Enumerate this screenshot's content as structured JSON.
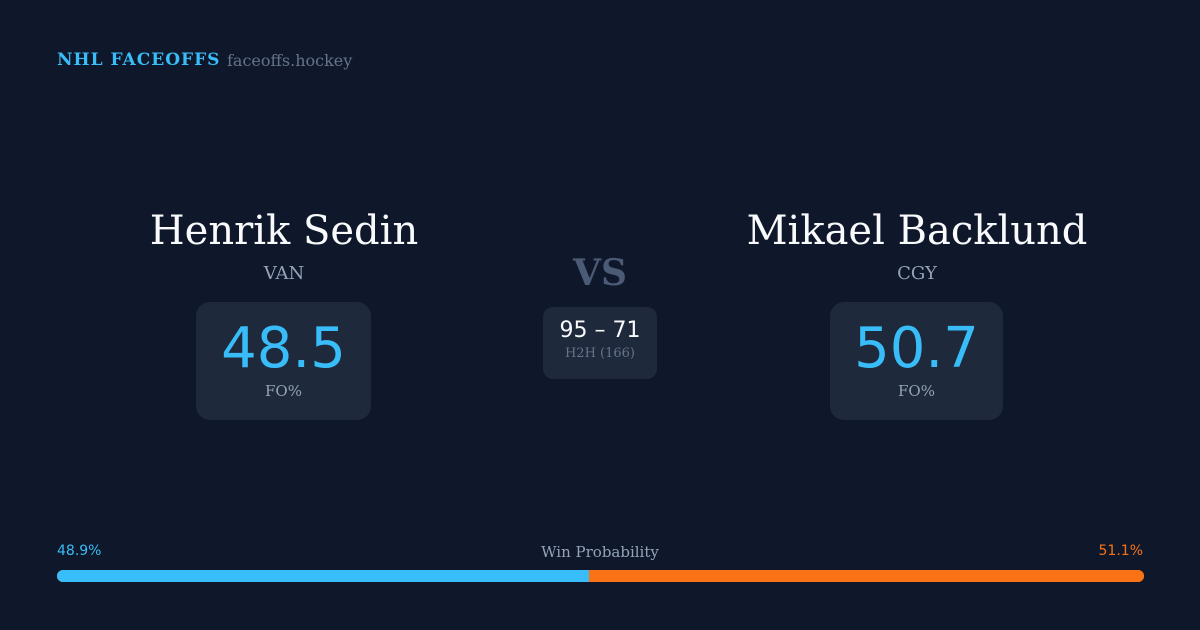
{
  "header": {
    "brand": "NHL FACEOFFS",
    "site": "faceoffs.hockey"
  },
  "players": [
    {
      "name": "Henrik Sedin",
      "team": "VAN",
      "fo_pct": "48.5",
      "fo_label": "FO%"
    },
    {
      "name": "Mikael Backlund",
      "team": "CGY",
      "fo_pct": "50.7",
      "fo_label": "FO%"
    }
  ],
  "vs": "VS",
  "h2h": {
    "score": "95 – 71",
    "label": "H2H (166)"
  },
  "win_probability": {
    "title": "Win Probability",
    "left": "48.9%",
    "right": "51.1%",
    "left_value": 48.9,
    "colors": {
      "left": "#38bdf8",
      "right": "#f97316"
    }
  }
}
